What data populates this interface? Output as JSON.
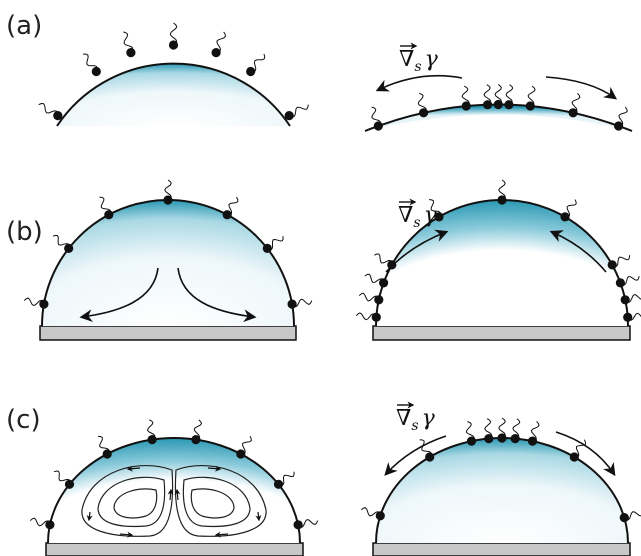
{
  "panels": [
    {
      "id": "a",
      "label": "(a)"
    },
    {
      "id": "b",
      "label": "(b)"
    },
    {
      "id": "c",
      "label": "(c)"
    }
  ],
  "gradient_label": {
    "nabla": "∇",
    "sub": "s",
    "gamma": "γ"
  },
  "colors": {
    "fluid_edge": "#2a98b3",
    "fluid_center": "#ffffff",
    "substrate_fill": "#c8c8c8",
    "outline": "#111111"
  }
}
